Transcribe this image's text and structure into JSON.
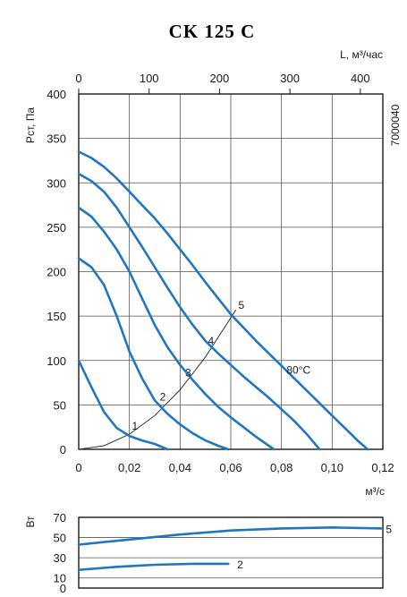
{
  "chart_data": [
    {
      "type": "line",
      "title": "CK 125 C",
      "xlabel": "м³/с",
      "ylabel": "Рст, Па",
      "top_axis_label": "L, м³/час",
      "side_code": "7000040",
      "xlim": [
        0,
        0.12
      ],
      "ylim": [
        0,
        400
      ],
      "top_xlim": [
        0,
        432
      ],
      "x_ticks": [
        "0",
        "0,02",
        "0,04",
        "0,06",
        "0,08",
        "0,10",
        "0,12"
      ],
      "top_x_ticks": [
        "0",
        "100",
        "200",
        "300",
        "400"
      ],
      "y_ticks": [
        "0",
        "50",
        "100",
        "150",
        "200",
        "250",
        "300",
        "350",
        "400"
      ],
      "grid": true,
      "temperature_label": "80°C",
      "series": [
        {
          "name": "1",
          "x": [
            0,
            0.005,
            0.01,
            0.015,
            0.02,
            0.025,
            0.03,
            0.035
          ],
          "y": [
            100,
            70,
            42,
            24,
            15,
            10,
            6,
            0
          ]
        },
        {
          "name": "2",
          "x": [
            0,
            0.005,
            0.01,
            0.015,
            0.02,
            0.025,
            0.03,
            0.035,
            0.04,
            0.045,
            0.05,
            0.055,
            0.059
          ],
          "y": [
            215,
            205,
            185,
            150,
            110,
            80,
            55,
            40,
            28,
            18,
            10,
            4,
            0
          ]
        },
        {
          "name": "3",
          "x": [
            0,
            0.005,
            0.01,
            0.015,
            0.02,
            0.025,
            0.03,
            0.035,
            0.04,
            0.045,
            0.05,
            0.055,
            0.06,
            0.065,
            0.07,
            0.077
          ],
          "y": [
            272,
            262,
            245,
            225,
            200,
            170,
            140,
            115,
            95,
            78,
            62,
            48,
            36,
            25,
            14,
            0
          ]
        },
        {
          "name": "4",
          "x": [
            0,
            0.005,
            0.01,
            0.015,
            0.02,
            0.025,
            0.03,
            0.035,
            0.04,
            0.045,
            0.05,
            0.055,
            0.06,
            0.065,
            0.07,
            0.075,
            0.08,
            0.085,
            0.09,
            0.095
          ],
          "y": [
            310,
            302,
            290,
            272,
            250,
            228,
            205,
            182,
            160,
            140,
            122,
            108,
            95,
            82,
            70,
            58,
            45,
            32,
            17,
            0
          ]
        },
        {
          "name": "5",
          "x": [
            0,
            0.005,
            0.01,
            0.015,
            0.02,
            0.025,
            0.03,
            0.035,
            0.04,
            0.045,
            0.05,
            0.055,
            0.06,
            0.065,
            0.07,
            0.075,
            0.08,
            0.085,
            0.09,
            0.095,
            0.1,
            0.105,
            0.11,
            0.114
          ],
          "y": [
            335,
            328,
            318,
            305,
            290,
            275,
            260,
            243,
            225,
            207,
            188,
            170,
            152,
            137,
            122,
            108,
            94,
            80,
            66,
            52,
            38,
            24,
            10,
            0
          ]
        }
      ],
      "system_curve": {
        "x": [
          0,
          0.01,
          0.02,
          0.03,
          0.04,
          0.05,
          0.062
        ],
        "y": [
          0,
          4,
          17,
          38,
          67,
          104,
          157
        ]
      },
      "labels": [
        {
          "text": "1",
          "x": 0.021,
          "y": 22
        },
        {
          "text": "2",
          "x": 0.032,
          "y": 55
        },
        {
          "text": "3",
          "x": 0.042,
          "y": 82
        },
        {
          "text": "4",
          "x": 0.051,
          "y": 118
        },
        {
          "text": "5",
          "x": 0.063,
          "y": 158
        },
        {
          "text": "80°C",
          "x": 0.082,
          "y": 85
        }
      ]
    },
    {
      "type": "line",
      "ylabel": "Вт",
      "xlim": [
        0,
        0.12
      ],
      "ylim": [
        0,
        70
      ],
      "y_ticks": [
        "0",
        "10",
        "30",
        "50",
        "70"
      ],
      "grid": true,
      "series": [
        {
          "name": "5",
          "x": [
            0,
            0.02,
            0.04,
            0.06,
            0.08,
            0.1,
            0.12
          ],
          "y": [
            43,
            48,
            53,
            57,
            59,
            60,
            59
          ]
        },
        {
          "name": "2",
          "x": [
            0,
            0.015,
            0.03,
            0.045,
            0.059
          ],
          "y": [
            18,
            21,
            23,
            24,
            24
          ]
        }
      ]
    }
  ]
}
